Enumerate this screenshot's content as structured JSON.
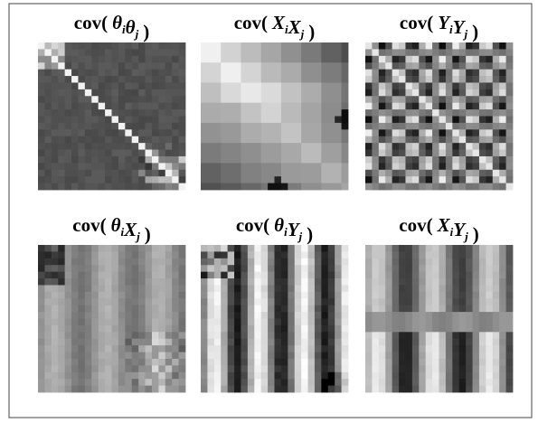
{
  "panels": [
    {
      "prefix": "cov(",
      "terms": [
        {
          "sym": "θ",
          "sub": "i"
        },
        {
          "sym": "θ",
          "sub": "j"
        }
      ],
      "suffix": ")"
    },
    {
      "prefix": "cov(",
      "terms": [
        {
          "sym": "X",
          "sub": "i"
        },
        {
          "sym": "X",
          "sub": "j"
        }
      ],
      "suffix": ")"
    },
    {
      "prefix": "cov(",
      "terms": [
        {
          "sym": "Y",
          "sub": "i"
        },
        {
          "sym": "Y",
          "sub": "j"
        }
      ],
      "suffix": ")"
    },
    {
      "prefix": "cov(",
      "terms": [
        {
          "sym": "θ",
          "sub": "i"
        },
        {
          "sym": "X",
          "sub": "j"
        }
      ],
      "suffix": ")"
    },
    {
      "prefix": "cov(",
      "terms": [
        {
          "sym": "θ",
          "sub": "i"
        },
        {
          "sym": "Y",
          "sub": "j"
        }
      ],
      "suffix": ")"
    },
    {
      "prefix": "cov(",
      "terms": [
        {
          "sym": "X",
          "sub": "i"
        },
        {
          "sym": "Y",
          "sub": "j"
        }
      ],
      "suffix": ")"
    }
  ]
}
